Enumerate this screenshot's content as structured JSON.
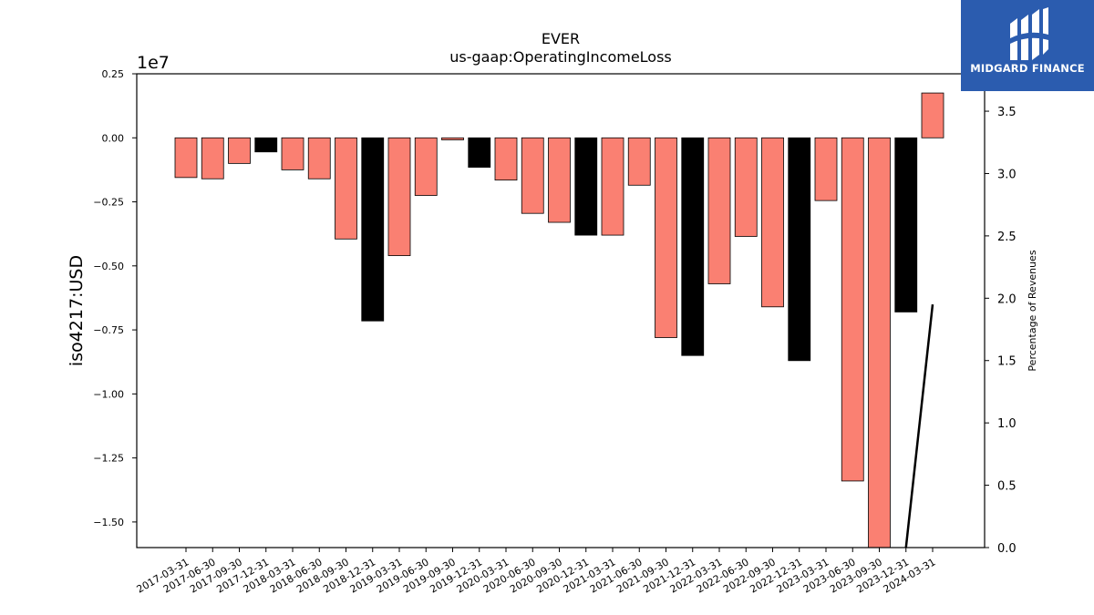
{
  "header": {
    "title": "EVER",
    "subtitle": "us-gaap:OperatingIncomeLoss"
  },
  "logo": {
    "brand_name": "MIDGARD FINANCE",
    "background_color": "#2b5caf"
  },
  "chart_data": {
    "type": "bar",
    "title": "EVER",
    "subtitle": "us-gaap:OperatingIncomeLoss",
    "ylabel": "iso4217:USD",
    "y_offset_label": "1e7",
    "y2label": "Percentage of Revenues",
    "xlabel": "",
    "grid": false,
    "ylim": [
      -16000000,
      2500000
    ],
    "y_ticks": [
      2500000,
      0,
      -2500000,
      -5000000,
      -7500000,
      -10000000,
      -12500000,
      -15000000
    ],
    "y_tick_labels": [
      "0.25",
      "0.00",
      "−0.25",
      "−0.50",
      "−0.75",
      "−1.00",
      "−1.25",
      "−1.50"
    ],
    "y2lim": [
      0,
      3.8
    ],
    "y2_ticks": [
      0,
      0.5,
      1.0,
      1.5,
      2.0,
      2.5,
      3.0,
      3.5
    ],
    "y2_tick_labels": [
      "0.0",
      "0.5",
      "1.0",
      "1.5",
      "2.0",
      "2.5",
      "3.0",
      "3.5"
    ],
    "categories": [
      "2017-03-31",
      "2017-06-30",
      "2017-09-30",
      "2017-12-31",
      "2018-03-31",
      "2018-06-30",
      "2018-09-30",
      "2018-12-31",
      "2019-03-31",
      "2019-06-30",
      "2019-09-30",
      "2019-12-31",
      "2020-03-31",
      "2020-06-30",
      "2020-09-30",
      "2020-12-31",
      "2021-03-31",
      "2021-06-30",
      "2021-09-30",
      "2021-12-31",
      "2022-03-31",
      "2022-06-30",
      "2022-09-30",
      "2022-12-31",
      "2023-03-31",
      "2023-06-30",
      "2023-09-30",
      "2023-12-31",
      "2024-03-31"
    ],
    "values": [
      -1550000,
      -1600000,
      -1000000,
      -550000,
      -1250000,
      -1600000,
      -3950000,
      -7150000,
      -4600000,
      -2250000,
      -80000,
      -1150000,
      -1650000,
      -2950000,
      -3300000,
      -3800000,
      -3800000,
      -1850000,
      -7800000,
      -8500000,
      -5700000,
      -3850000,
      -6600000,
      -8700000,
      -2450000,
      -13400000,
      -16000000,
      -6800000,
      1750000
    ],
    "bar_colors": [
      "#fa8072",
      "#fa8072",
      "#fa8072",
      "#000000",
      "#fa8072",
      "#fa8072",
      "#fa8072",
      "#000000",
      "#fa8072",
      "#fa8072",
      "#fa8072",
      "#000000",
      "#fa8072",
      "#fa8072",
      "#fa8072",
      "#000000",
      "#fa8072",
      "#fa8072",
      "#fa8072",
      "#000000",
      "#fa8072",
      "#fa8072",
      "#fa8072",
      "#000000",
      "#fa8072",
      "#fa8072",
      "#fa8072",
      "#000000",
      "#fa8072"
    ],
    "secondary_series": {
      "type": "line",
      "color": "#000000",
      "x": [
        "2023-12-31",
        "2024-03-31"
      ],
      "values": [
        0.0,
        1.95
      ]
    }
  }
}
